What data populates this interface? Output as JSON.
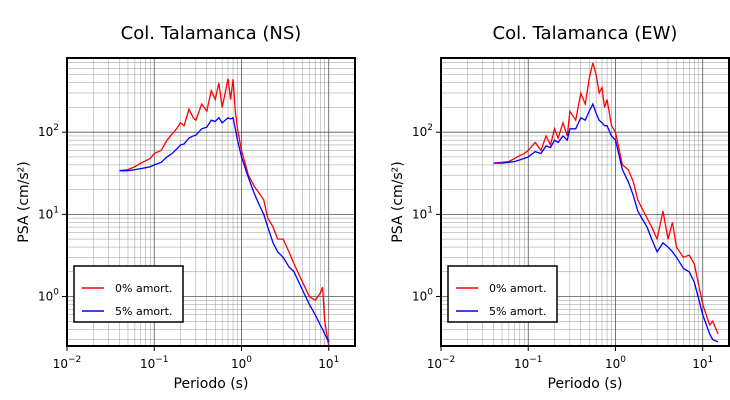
{
  "chart_data": [
    {
      "type": "line",
      "title": "Col. Talamanca (NS)",
      "x_label": "Periodo (s)",
      "y_label": "PSA (cm/s²)",
      "log_x": true,
      "log_y": true,
      "grid": true,
      "minor_grid": true,
      "legend": "lower left",
      "xlim": [
        0.01,
        20
      ],
      "ylim": [
        0.25,
        800
      ],
      "xticks": [
        {
          "value": 0.01,
          "label": "10",
          "exponent": "−2"
        },
        {
          "value": 0.1,
          "label": "10",
          "exponent": "−1"
        },
        {
          "value": 1,
          "label": "10",
          "exponent": "0"
        },
        {
          "value": 10,
          "label": "10",
          "exponent": "1"
        }
      ],
      "yticks": [
        {
          "value": 1,
          "label": "10",
          "exponent": "0"
        },
        {
          "value": 10,
          "label": "10",
          "exponent": "1"
        },
        {
          "value": 100,
          "label": "10",
          "exponent": "2"
        }
      ],
      "x": [
        0.04,
        0.05,
        0.06,
        0.07,
        0.08,
        0.09,
        0.1,
        0.12,
        0.14,
        0.16,
        0.18,
        0.2,
        0.22,
        0.25,
        0.28,
        0.3,
        0.35,
        0.4,
        0.45,
        0.5,
        0.55,
        0.6,
        0.65,
        0.7,
        0.75,
        0.8,
        0.85,
        0.9,
        1.0,
        1.2,
        1.4,
        1.6,
        1.8,
        2.0,
        2.3,
        2.6,
        3.0,
        3.5,
        4.0,
        5.0,
        6.0,
        7.0,
        8.0,
        8.5,
        9.0,
        10
      ],
      "series": [
        {
          "name": "0% amort.",
          "color": "#ff0000",
          "values": [
            34,
            35,
            38,
            42,
            45,
            48,
            55,
            60,
            80,
            95,
            110,
            130,
            120,
            190,
            150,
            140,
            220,
            180,
            320,
            250,
            400,
            200,
            300,
            450,
            250,
            440,
            180,
            110,
            60,
            30,
            22,
            18,
            15,
            9,
            7,
            5,
            5,
            3.5,
            2.5,
            1.5,
            1.0,
            0.9,
            1.1,
            1.3,
            0.5,
            0.25
          ]
        },
        {
          "name": "5% amort.",
          "color": "#0000ff",
          "values": [
            34,
            34,
            35,
            36,
            37,
            38,
            40,
            43,
            50,
            55,
            62,
            70,
            72,
            85,
            90,
            92,
            110,
            115,
            140,
            135,
            150,
            130,
            140,
            150,
            145,
            150,
            110,
            80,
            50,
            28,
            18,
            13,
            10,
            7,
            4.5,
            3.5,
            3.0,
            2.3,
            2.0,
            1.2,
            0.8,
            0.6,
            0.45,
            0.4,
            0.35,
            0.28
          ]
        }
      ]
    },
    {
      "type": "line",
      "title": "Col. Talamanca (EW)",
      "x_label": "Periodo (s)",
      "y_label": "PSA (cm/s²)",
      "log_x": true,
      "log_y": true,
      "grid": true,
      "minor_grid": true,
      "legend": "lower left",
      "xlim": [
        0.01,
        20
      ],
      "ylim": [
        0.25,
        800
      ],
      "xticks": [
        {
          "value": 0.01,
          "label": "10",
          "exponent": "−2"
        },
        {
          "value": 0.1,
          "label": "10",
          "exponent": "−1"
        },
        {
          "value": 1,
          "label": "10",
          "exponent": "0"
        },
        {
          "value": 10,
          "label": "10",
          "exponent": "1"
        }
      ],
      "yticks": [
        {
          "value": 1,
          "label": "10",
          "exponent": "0"
        },
        {
          "value": 10,
          "label": "10",
          "exponent": "1"
        },
        {
          "value": 100,
          "label": "10",
          "exponent": "2"
        }
      ],
      "x": [
        0.04,
        0.05,
        0.06,
        0.07,
        0.08,
        0.09,
        0.1,
        0.12,
        0.14,
        0.16,
        0.18,
        0.2,
        0.22,
        0.25,
        0.28,
        0.3,
        0.35,
        0.4,
        0.45,
        0.5,
        0.55,
        0.6,
        0.65,
        0.7,
        0.75,
        0.8,
        0.9,
        1.0,
        1.2,
        1.4,
        1.6,
        1.8,
        2.0,
        2.3,
        2.6,
        3.0,
        3.5,
        4.0,
        4.5,
        5.0,
        6.0,
        7.0,
        8.0,
        10,
        12,
        13,
        15
      ],
      "series": [
        {
          "name": "0% amort.",
          "color": "#ff0000",
          "values": [
            42,
            43,
            44,
            48,
            52,
            55,
            60,
            75,
            60,
            90,
            70,
            110,
            85,
            130,
            90,
            180,
            140,
            300,
            220,
            450,
            700,
            500,
            300,
            350,
            200,
            250,
            120,
            100,
            40,
            35,
            25,
            15,
            12,
            9,
            7,
            5,
            11,
            5,
            8,
            4,
            3,
            3.2,
            2.5,
            0.8,
            0.45,
            0.5,
            0.35
          ]
        },
        {
          "name": "5% amort.",
          "color": "#0000ff",
          "values": [
            42,
            42,
            43,
            44,
            46,
            48,
            50,
            58,
            55,
            68,
            65,
            80,
            75,
            90,
            80,
            110,
            110,
            150,
            140,
            180,
            220,
            170,
            140,
            130,
            120,
            120,
            90,
            80,
            35,
            25,
            17,
            11,
            9,
            7,
            5,
            3.5,
            4.5,
            4,
            3.5,
            3,
            2.2,
            2.0,
            1.5,
            0.6,
            0.35,
            0.3,
            0.28
          ]
        }
      ]
    }
  ]
}
